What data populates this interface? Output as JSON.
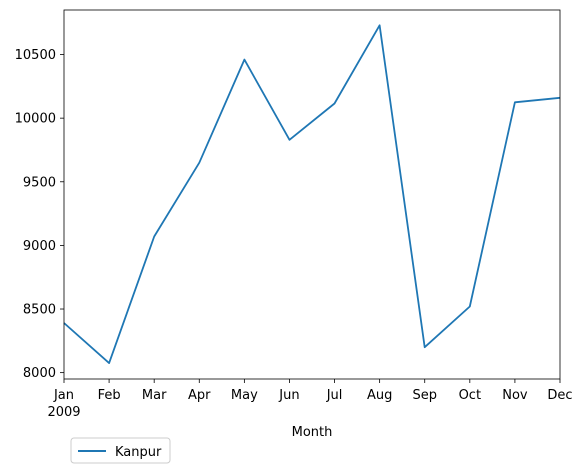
{
  "chart_data": {
    "type": "line",
    "title": "",
    "xlabel": "Month",
    "ylabel": "",
    "categories": [
      "Jan",
      "Feb",
      "Mar",
      "Apr",
      "May",
      "Jun",
      "Jul",
      "Aug",
      "Sep",
      "Oct",
      "Nov",
      "Dec"
    ],
    "year_label": "2009",
    "series": [
      {
        "name": "Kanpur",
        "color": "#1f77b4",
        "values": [
          8390,
          8075,
          9070,
          9650,
          10460,
          9830,
          10115,
          10730,
          8200,
          8520,
          10125,
          10160
        ]
      }
    ],
    "ylim": [
      7950,
      10850
    ],
    "yticks": [
      8000,
      8500,
      9000,
      9500,
      10000,
      10500
    ],
    "grid": false,
    "legend_position": "below-left"
  }
}
